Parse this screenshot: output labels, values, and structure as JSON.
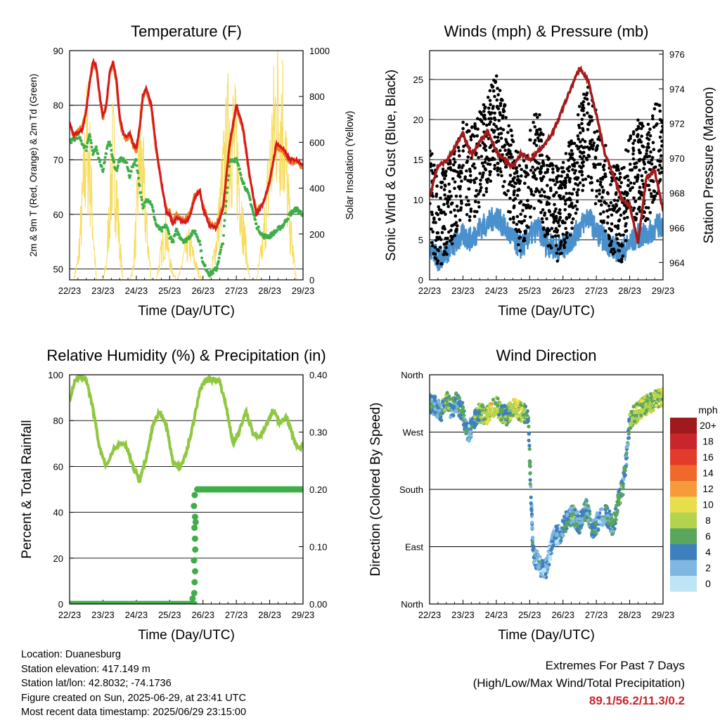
{
  "xticks": [
    "22/23",
    "23/23",
    "24/23",
    "25/23",
    "26/23",
    "27/23",
    "28/23",
    "29/23"
  ],
  "xlabel": "Time (Day/UTC)",
  "info": {
    "location": "Location: Duanesburg",
    "elevation": "Station elevation: 417.149 m",
    "latlon": "Station lat/lon: 42.8032; -74.1736",
    "created": "Figure created on Sun, 2025-06-29, at 23:41 UTC",
    "recent": "Most recent data timestamp: 2025/06/29 23:15:00"
  },
  "extremes": {
    "title": "Extremes For Past 7 Days",
    "subtitle": "(High/Low/Max Wind/Total Precipitation)",
    "values": "89.1/56.2/11.3/0.2"
  },
  "colors": {
    "temp2m": "#d7191c",
    "temp9m": "#f07c24",
    "dewpoint": "#3fae49",
    "solar": "#f7dc5e",
    "gust": "#000000",
    "wind": "#4a90cc",
    "pressure": "#a31a1a",
    "rh": "#8fc741",
    "precip": "#3fae49"
  },
  "chart_data": [
    {
      "type": "line",
      "title": "Temperature (F)",
      "xlabel": "Time (Day/UTC)",
      "ylabel": "2m & 9m T (Red, Orange) & 2m Td (Green)",
      "ylabel_right": "Solar Insolation (Yellow)",
      "ylim": [
        48,
        90
      ],
      "yticks": [
        "50",
        "60",
        "70",
        "80",
        "90"
      ],
      "ylim_right": [
        0,
        1000
      ],
      "yticks_right": [
        "0",
        "200",
        "400",
        "600",
        "800",
        "1000"
      ],
      "x": [
        0,
        0.12,
        0.25,
        0.38,
        0.5,
        0.6,
        0.7,
        0.8,
        0.9,
        1.0,
        1.1,
        1.2,
        1.3,
        1.4,
        1.5,
        1.6,
        1.7,
        1.8,
        1.9,
        2.0,
        2.1,
        2.2,
        2.3,
        2.45,
        2.6,
        2.75,
        2.9,
        3.0,
        3.1,
        3.2,
        3.3,
        3.45,
        3.6,
        3.75,
        3.9,
        4.0,
        4.2,
        4.4,
        4.6,
        4.8,
        5.0,
        5.2,
        5.4,
        5.6,
        5.8,
        6.0,
        6.2,
        6.4,
        6.6,
        6.8,
        7.0
      ],
      "series": [
        {
          "name": "2m T",
          "values": [
            77,
            74.5,
            75,
            75.5,
            79,
            84,
            88,
            87,
            82,
            78,
            80,
            86,
            88,
            85,
            78,
            75,
            74,
            75,
            73,
            72,
            76,
            82,
            83,
            80,
            72,
            66,
            60.5,
            60,
            58,
            59.5,
            59,
            58.5,
            59.5,
            63,
            64.5,
            61,
            58,
            57.5,
            61,
            73,
            80,
            76,
            67,
            60,
            62,
            66,
            73,
            72,
            70,
            70,
            69
          ]
        },
        {
          "name": "9m T",
          "values": [
            76.5,
            74,
            75.5,
            76,
            79.5,
            84.5,
            87.5,
            86.5,
            81.5,
            77.5,
            79.5,
            85.5,
            87.5,
            84.5,
            77.5,
            74.5,
            73.5,
            74.5,
            72.5,
            71.5,
            75.5,
            81.5,
            82.5,
            79.5,
            71.5,
            65.5,
            61,
            60.5,
            58.5,
            60,
            59.5,
            59,
            60,
            63.5,
            64,
            61.5,
            58.5,
            58,
            61.5,
            72.5,
            79.5,
            75.5,
            66.5,
            60.5,
            62,
            66,
            72.5,
            71.5,
            69.5,
            69.5,
            68.5
          ]
        },
        {
          "name": "2m Td",
          "values": [
            73.5,
            73.5,
            74.5,
            73,
            72,
            75,
            71,
            72,
            70,
            68,
            71.5,
            73.5,
            70,
            68,
            70,
            70,
            69.5,
            67,
            69,
            70,
            65,
            61,
            63,
            62,
            58,
            57,
            58,
            56,
            55,
            57,
            56,
            55,
            56,
            57,
            55,
            51,
            49,
            50,
            55,
            70,
            70,
            66,
            63,
            58,
            56,
            56,
            57,
            58,
            60,
            61,
            60
          ]
        },
        {
          "name": "Solar",
          "values": [
            0,
            0,
            100,
            400,
            750,
            650,
            300,
            0,
            0,
            0,
            80,
            400,
            700,
            500,
            200,
            0,
            0,
            0,
            60,
            300,
            700,
            550,
            300,
            0,
            0,
            150,
            280,
            100,
            40,
            0,
            30,
            150,
            200,
            100,
            20,
            0,
            0,
            200,
            550,
            850,
            700,
            300,
            0,
            0,
            200,
            600,
            950,
            900,
            300,
            0,
            0
          ]
        }
      ]
    },
    {
      "type": "line",
      "title": "Winds (mph) & Pressure (mb)",
      "xlabel": "Time (Day/UTC)",
      "ylabel": "Sonic Wind & Gust (Blue, Black)",
      "ylabel_right": "Station Pressure (Maroon)",
      "ylim": [
        0,
        28.6
      ],
      "yticks": [
        "0",
        "5",
        "10",
        "15",
        "20",
        "25"
      ],
      "ylim_right": [
        963,
        976.2
      ],
      "yticks_right": [
        "964",
        "966",
        "968",
        "970",
        "972",
        "974",
        "976"
      ],
      "x": [
        0,
        0.25,
        0.5,
        0.75,
        1.0,
        1.25,
        1.5,
        1.75,
        2.0,
        2.25,
        2.5,
        2.75,
        3.0,
        3.25,
        3.5,
        3.75,
        4.0,
        4.25,
        4.5,
        4.75,
        5.0,
        5.25,
        5.5,
        5.75,
        6.0,
        6.25,
        6.5,
        6.75,
        7.0
      ],
      "series": [
        {
          "name": "Gust",
          "values": [
            12,
            6,
            9,
            10,
            14,
            13,
            15,
            17,
            20,
            16,
            12,
            9,
            13,
            16,
            10,
            8,
            9,
            12,
            16,
            19,
            15,
            11,
            9,
            8,
            12,
            14,
            13,
            16,
            17
          ]
        },
        {
          "name": "Wind",
          "values": [
            4.5,
            2.5,
            3.5,
            4.5,
            5.5,
            5,
            6.5,
            7,
            8,
            6.5,
            5,
            4,
            5.5,
            6.5,
            4.5,
            4,
            4,
            5,
            6.5,
            8,
            6,
            5,
            4,
            3.5,
            4.5,
            5.5,
            5.5,
            6.5,
            7
          ]
        },
        {
          "name": "Pressure",
          "values": [
            967.8,
            969.6,
            969.8,
            970.6,
            971.5,
            970.2,
            970.9,
            971.6,
            970.4,
            969.9,
            969.5,
            970.3,
            969.9,
            970.4,
            970.9,
            971.7,
            972.9,
            974.1,
            975.2,
            974.5,
            972.5,
            970.3,
            969.1,
            967.7,
            967.3,
            965.1,
            968.9,
            969.3,
            967.0
          ]
        }
      ]
    },
    {
      "type": "line",
      "title": "Relative Humidity (%) & Precipitation (in)",
      "xlabel": "Time (Day/UTC)",
      "ylabel": "Percent & Total Rainfall",
      "ylim": [
        0,
        100
      ],
      "yticks": [
        "0",
        "20",
        "40",
        "60",
        "80",
        "100"
      ],
      "ylim_right": [
        0,
        0.4
      ],
      "yticks_right": [
        "0.00",
        "0.10",
        "0.20",
        "0.30",
        "0.40"
      ],
      "x": [
        0,
        0.15,
        0.3,
        0.5,
        0.7,
        0.9,
        1.1,
        1.3,
        1.5,
        1.7,
        1.9,
        2.1,
        2.3,
        2.5,
        2.7,
        2.9,
        3.1,
        3.3,
        3.5,
        3.7,
        3.9,
        4.1,
        4.3,
        4.5,
        4.7,
        4.9,
        5.1,
        5.3,
        5.5,
        5.7,
        5.9,
        6.1,
        6.3,
        6.5,
        6.7,
        6.9,
        7.0
      ],
      "series": [
        {
          "name": "RH",
          "values": [
            89,
            97,
            99,
            98,
            85,
            68,
            60,
            67,
            70,
            69,
            60,
            54,
            64,
            78,
            84,
            78,
            62,
            59,
            66,
            78,
            93,
            98,
            98,
            97,
            86,
            70,
            76,
            84,
            74,
            73,
            78,
            85,
            79,
            82,
            73,
            67,
            70
          ]
        },
        {
          "name": "Precip",
          "values": [
            0,
            0,
            0,
            0,
            0,
            0,
            0,
            0,
            0,
            0,
            0,
            0,
            0,
            0,
            0,
            0,
            0,
            0,
            0.0,
            0.0,
            0.2,
            0.2,
            0.2,
            0.2,
            0.2,
            0.2,
            0.2,
            0.2,
            0.2,
            0.2,
            0.2,
            0.2,
            0.2,
            0.2,
            0.2,
            0.2,
            0.2
          ]
        }
      ]
    },
    {
      "type": "scatter",
      "title": "Wind Direction",
      "xlabel": "Time (Day/UTC)",
      "ylabel": "Direction (Colored By Speed)",
      "yticks": [
        "North",
        "East",
        "South",
        "West",
        "North"
      ],
      "ylim": [
        0,
        360
      ],
      "legend_title": "mph",
      "legend_labels": [
        "20+",
        "18",
        "16",
        "14",
        "12",
        "10",
        "8",
        "6",
        "4",
        "2",
        "0"
      ],
      "legend_colors": [
        "#9e1a1d",
        "#c8262c",
        "#e33b2b",
        "#f0682a",
        "#f79a3a",
        "#e8dd4a",
        "#b3d34e",
        "#5aa65d",
        "#3e7fbe",
        "#7fb7e2",
        "#bfe4f5"
      ],
      "x": [
        0.05,
        0.2,
        0.35,
        0.5,
        0.65,
        0.8,
        1.0,
        1.15,
        1.3,
        1.5,
        1.7,
        1.85,
        2.0,
        2.15,
        2.3,
        2.5,
        2.65,
        2.8,
        2.95,
        3.1,
        3.3,
        3.5,
        3.7,
        3.9,
        4.1,
        4.3,
        4.5,
        4.7,
        4.9,
        5.1,
        5.3,
        5.5,
        5.65,
        5.8,
        5.9,
        6.0,
        6.2,
        6.4,
        6.6,
        6.8,
        6.95
      ],
      "y": [
        315,
        310,
        300,
        320,
        305,
        318,
        300,
        265,
        285,
        300,
        295,
        308,
        312,
        300,
        295,
        310,
        305,
        298,
        300,
        80,
        60,
        55,
        105,
        110,
        130,
        140,
        125,
        150,
        115,
        135,
        140,
        120,
        160,
        185,
        230,
        290,
        300,
        310,
        315,
        320,
        325
      ],
      "speed": [
        5,
        3,
        4,
        6,
        5,
        4,
        5,
        3,
        4,
        6,
        8,
        9,
        7,
        6,
        5,
        8,
        9,
        7,
        6,
        3,
        3,
        2,
        2,
        3,
        4,
        5,
        3,
        4,
        4,
        3,
        4,
        5,
        6,
        5,
        4,
        6,
        7,
        8,
        7,
        8,
        9
      ]
    }
  ]
}
